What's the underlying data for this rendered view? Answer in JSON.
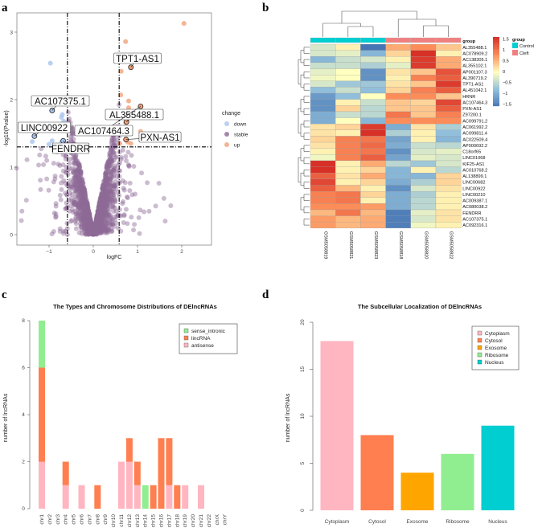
{
  "panels": {
    "a": "a",
    "b": "b",
    "c": "c",
    "d": "d"
  },
  "chart_data": [
    {
      "type": "scatter",
      "panel": "a",
      "xlabel": "logFC",
      "ylabel": "-log10(Pvalue)",
      "xlim": [
        -1.8,
        2.65
      ],
      "ylim": [
        -0.15,
        3.3
      ],
      "xticks": [
        -1,
        0,
        1,
        2
      ],
      "yticks": [
        0,
        1,
        2,
        3
      ],
      "thresholds": {
        "logFC": [
          -0.585,
          0.585
        ],
        "neglog10p": 1.3
      },
      "legend": {
        "title": "change",
        "items": [
          "down",
          "stable",
          "up"
        ],
        "position": "right"
      },
      "colors": {
        "down": "#a9c4ee",
        "stable": "#8e6b96",
        "up": "#f0a27a"
      },
      "down_points": [
        [
          -0.97,
          2.54
        ],
        [
          -0.93,
          1.84
        ],
        [
          -0.7,
          1.78
        ],
        [
          -0.72,
          1.74
        ],
        [
          -0.67,
          1.68
        ],
        [
          -1.33,
          1.46
        ],
        [
          -1.38,
          1.38
        ],
        [
          -0.93,
          1.39
        ],
        [
          -0.68,
          1.39
        ],
        [
          -0.72,
          1.37
        ],
        [
          -1.0,
          1.34
        ]
      ],
      "up_points": [
        [
          2.05,
          3.13
        ],
        [
          0.73,
          2.86
        ],
        [
          0.85,
          2.48
        ],
        [
          0.63,
          2.42
        ],
        [
          0.62,
          2.07
        ],
        [
          0.8,
          1.98
        ],
        [
          1.07,
          1.9
        ],
        [
          0.8,
          1.88
        ],
        [
          0.75,
          1.67
        ],
        [
          0.73,
          1.66
        ],
        [
          1.07,
          1.53
        ],
        [
          0.74,
          1.41
        ],
        [
          0.85,
          1.35
        ],
        [
          0.6,
          1.35
        ],
        [
          0.78,
          1.37
        ]
      ],
      "labeled": [
        {
          "label": "TPT1-AS1",
          "x": 0.85,
          "y": 2.48
        },
        {
          "label": "AC107375.1",
          "x": -0.93,
          "y": 1.84
        },
        {
          "label": "AL355488.1",
          "x": 0.75,
          "y": 1.67
        },
        {
          "label": "LINC00922",
          "x": -1.33,
          "y": 1.46
        },
        {
          "label": "AC107464.3",
          "x": 1.07,
          "y": 1.9
        },
        {
          "label": "PXN-AS1",
          "x": 0.74,
          "y": 1.41
        },
        {
          "label": "FENDRR",
          "x": -0.68,
          "y": 1.39
        }
      ]
    },
    {
      "type": "heatmap",
      "panel": "b",
      "columns": [
        "GSM5058819",
        "GSM5058821",
        "GSM5058823",
        "GSM5058818",
        "GSM5058820",
        "GSM5058822"
      ],
      "column_groups": [
        "Control",
        "Control",
        "Control",
        "Cleft",
        "Cleft",
        "Cleft"
      ],
      "group_label": "group",
      "legend": {
        "title": "group",
        "items": [
          {
            "name": "Control",
            "color": "#00ced1"
          },
          {
            "name": "Cleft",
            "color": "#f08080"
          }
        ]
      },
      "colorbar_ticks": [
        1.5,
        1,
        0.5,
        0,
        -0.5,
        -1,
        -1.5
      ],
      "rows": [
        "AL355488.1",
        "AC078909.2",
        "AC138305.1",
        "AL355102.1",
        "AP001107.3",
        "AL390719.2",
        "TPT1-AS1",
        "AL451042.1",
        "HRNR",
        "AC107464.3",
        "PXN-AS1",
        "Z97200.1",
        "AC099791.2",
        "AC061992.2",
        "AC099811.4",
        "AC022509.4",
        "AP000692.2",
        "C18orf65",
        "LINC01068",
        "KIF25-AS1",
        "AC010768.2",
        "AL138899.1",
        "LINC00682",
        "LINC00922",
        "LINC00210",
        "AC009387.1",
        "AC080038.2",
        "FENDRR",
        "AC107375.1",
        "AC092316.1"
      ],
      "values": [
        [
          -0.3,
          0.1,
          -1.6,
          0.6,
          0.8,
          0.4
        ],
        [
          -0.3,
          -0.2,
          -0.9,
          0.3,
          1.6,
          0.1
        ],
        [
          -0.9,
          -0.4,
          -0.3,
          0.1,
          1.5,
          0.6
        ],
        [
          -0.4,
          -0.4,
          -0.6,
          -0.2,
          1.5,
          0.6
        ],
        [
          -0.2,
          0.0,
          -1.3,
          0.2,
          0.4,
          1.3
        ],
        [
          -0.1,
          0.0,
          -1.3,
          0.1,
          0.9,
          1.2
        ],
        [
          -0.3,
          -0.7,
          -0.7,
          0.2,
          0.4,
          1.5
        ],
        [
          -0.8,
          -0.4,
          -0.8,
          0.3,
          0.9,
          1.2
        ],
        [
          -1.2,
          -0.8,
          0.0,
          0.8,
          0.8,
          0.4
        ],
        [
          -1.3,
          0.1,
          -0.4,
          0.4,
          0.3,
          1.4
        ],
        [
          -1.3,
          0.3,
          -0.5,
          0.4,
          0.4,
          1.2
        ],
        [
          -1.0,
          -0.4,
          -0.5,
          1.0,
          0.4,
          0.9
        ],
        [
          -1.0,
          0.0,
          -0.9,
          0.8,
          0.8,
          0.8
        ],
        [
          0.2,
          0.3,
          1.5,
          -1.0,
          0.2,
          -0.6
        ],
        [
          0.2,
          0.1,
          1.7,
          -0.6,
          0.1,
          -0.8
        ],
        [
          0.3,
          0.9,
          1.0,
          -1.1,
          0.1,
          -0.9
        ],
        [
          0.2,
          0.9,
          1.1,
          -1.0,
          -0.4,
          -0.5
        ],
        [
          0.1,
          0.9,
          1.0,
          -1.3,
          -0.3,
          -0.2
        ],
        [
          -0.1,
          0.9,
          1.2,
          -1.1,
          -0.2,
          -0.3
        ],
        [
          1.6,
          0.1,
          0.6,
          -0.5,
          -0.7,
          -0.3
        ],
        [
          1.7,
          0.1,
          0.3,
          -0.9,
          0.1,
          -0.5
        ],
        [
          1.2,
          0.2,
          0.6,
          -0.9,
          -0.9,
          0.3
        ],
        [
          1.4,
          0.1,
          0.3,
          -1.0,
          -0.6,
          0.3
        ],
        [
          1.2,
          0.5,
          0.1,
          -1.3,
          -0.3,
          0.2
        ],
        [
          0.9,
          1.0,
          0.3,
          -1.0,
          -0.6,
          0.1
        ],
        [
          0.9,
          1.0,
          0.1,
          -1.0,
          -0.5,
          0.1
        ],
        [
          0.8,
          0.8,
          0.7,
          -1.0,
          -0.5,
          0.1
        ],
        [
          0.5,
          1.0,
          0.5,
          -1.5,
          -0.2,
          0.2
        ],
        [
          0.7,
          0.5,
          0.6,
          -1.5,
          -0.3,
          0.2
        ],
        [
          0.7,
          0.5,
          0.6,
          -1.5,
          -0.1,
          0.1
        ]
      ]
    },
    {
      "type": "bar",
      "stacked": true,
      "panel": "c",
      "title": "The Types and Chromosome Distributions of DElncRNAs",
      "xlabel": "",
      "ylabel": "number of lncRNAs",
      "ylim": [
        0,
        8
      ],
      "yticks": [
        0,
        2,
        4,
        6,
        8
      ],
      "legend_position": "top-right",
      "categories": [
        "chr1",
        "chr2",
        "chr3",
        "chr4",
        "chr5",
        "chr6",
        "chr7",
        "chr8",
        "chr9",
        "chr10",
        "chr11",
        "chr12",
        "chr13",
        "chr14",
        "chr15",
        "chr16",
        "chr17",
        "chr18",
        "chr19",
        "chr20",
        "chr21",
        "chr22",
        "chrX",
        "chrY"
      ],
      "series": [
        {
          "name": "antisense",
          "color": "#ffb6c1",
          "values": [
            2,
            0,
            0,
            1,
            0,
            1,
            0,
            0,
            0,
            0,
            2,
            2,
            1,
            0,
            0,
            0,
            1,
            0,
            1,
            0,
            1,
            0,
            0,
            0
          ]
        },
        {
          "name": "lincRNA",
          "color": "#ff7f50",
          "values": [
            4,
            0,
            0,
            1,
            0,
            0,
            0,
            1,
            0,
            0,
            0,
            1,
            1,
            0,
            1,
            3,
            2,
            1,
            0,
            0,
            0,
            0,
            0,
            0
          ]
        },
        {
          "name": "sense_intronic",
          "color": "#90ee90",
          "values": [
            2,
            0,
            0,
            0,
            0,
            0,
            0,
            0,
            0,
            0,
            0,
            0,
            0,
            1,
            0,
            0,
            0,
            0,
            0,
            0,
            0,
            0,
            0,
            0
          ]
        }
      ],
      "legend_order": [
        "sense_intronic",
        "lincRNA",
        "antisense"
      ]
    },
    {
      "type": "bar",
      "panel": "d",
      "title": "The Subcellular Localization of DElncRNAs",
      "xlabel": "",
      "ylabel": "number of lncRNAs",
      "ylim": [
        0,
        20
      ],
      "yticks": [
        0,
        5,
        10,
        15,
        20
      ],
      "legend_position": "top-right",
      "categories": [
        "Cytoplasm",
        "Cytosol",
        "Exosome",
        "Ribosome",
        "Nucleus"
      ],
      "values": [
        18,
        8,
        4,
        6,
        9
      ],
      "colors": [
        "#ffb6c1",
        "#ff7f50",
        "#ffa500",
        "#90ee90",
        "#00ced1"
      ]
    }
  ]
}
